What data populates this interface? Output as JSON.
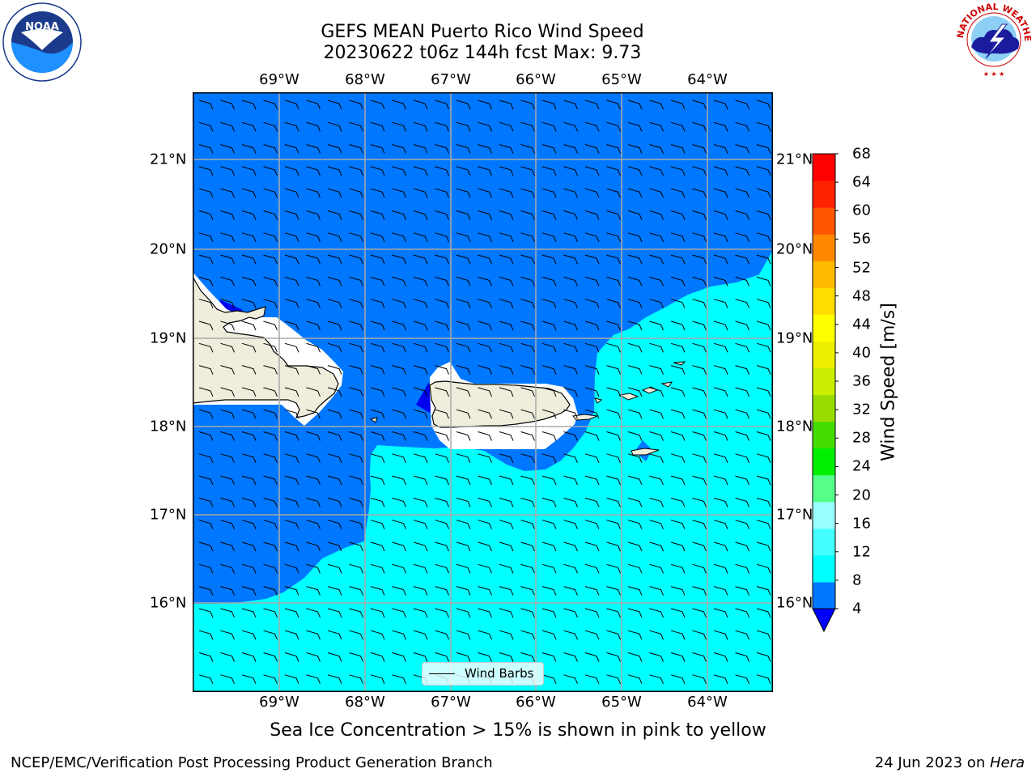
{
  "header": {
    "title_line1": "GEFS MEAN Puerto Rico Wind Speed",
    "title_line2": "20230622 t06z 144h fcst   Max: 9.73"
  },
  "map": {
    "lon_labels": [
      "69°W",
      "68°W",
      "67°W",
      "66°W",
      "65°W",
      "64°W"
    ],
    "lat_labels": [
      "21°N",
      "20°N",
      "19°N",
      "18°N",
      "17°N",
      "16°N"
    ],
    "fill_colors": {
      "land": "#efeedd",
      "low_wind": "#0077ff",
      "mid_wind": "#00ffff",
      "lowest_wind": "#0000ee",
      "masked": "#ffffff"
    },
    "legend_label": "Wind Barbs"
  },
  "colorbar": {
    "label": "Wind Speed [m/s]",
    "ticks": [
      "68",
      "64",
      "60",
      "56",
      "52",
      "48",
      "44",
      "40",
      "36",
      "32",
      "28",
      "24",
      "20",
      "16",
      "12",
      "8",
      "4"
    ],
    "colors": [
      "#0000ff",
      "#0077ff",
      "#00ffff",
      "#44ffff",
      "#99ffff",
      "#55ff88",
      "#00ee00",
      "#44dd00",
      "#99dd00",
      "#ccee00",
      "#eeee00",
      "#ffff00",
      "#ffdd00",
      "#ffbb00",
      "#ff8800",
      "#ff5500",
      "#ff2200",
      "#ff0000"
    ]
  },
  "subtitle": "Sea Ice Concentration > 15% is shown in pink to yellow",
  "footer": {
    "left": "NCEP/EMC/Verification Post Processing Product Generation Branch",
    "right_prefix": "24 Jun 2023 on ",
    "right_host": "Hera"
  },
  "logos": {
    "noaa_text": "NOAA",
    "nws_text": "NATIONAL WEATHER SERVICE"
  }
}
